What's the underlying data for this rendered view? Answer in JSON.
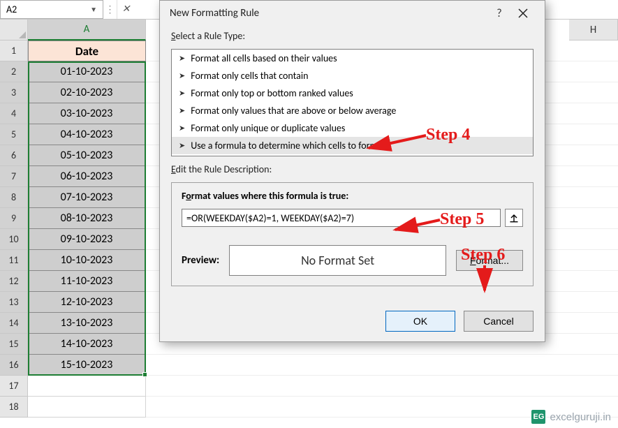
{
  "namebox": {
    "value": "A2"
  },
  "formulabar": {
    "value": ""
  },
  "columns": [
    "A",
    "H"
  ],
  "sheet": {
    "header_label": "Date",
    "row_headers": [
      1,
      2,
      3,
      4,
      5,
      6,
      7,
      8,
      9,
      10,
      11,
      12,
      13,
      14,
      15,
      16,
      17,
      18
    ],
    "colA": [
      "01-10-2023",
      "02-10-2023",
      "03-10-2023",
      "04-10-2023",
      "05-10-2023",
      "06-10-2023",
      "07-10-2023",
      "08-10-2023",
      "09-10-2023",
      "10-10-2023",
      "11-10-2023",
      "12-10-2023",
      "13-10-2023",
      "14-10-2023",
      "15-10-2023"
    ],
    "header_bg": "#fce4d6",
    "sel_bg": "#cecece",
    "selection_border": "#1e7e34"
  },
  "dialog": {
    "title": "New Formatting Rule",
    "select_label": "Select a Rule Type:",
    "rule_types": [
      "Format all cells based on their values",
      "Format only cells that contain",
      "Format only top or bottom ranked values",
      "Format only values that are above or below average",
      "Format only unique or duplicate values",
      "Use a formula to determine which cells to format"
    ],
    "selected_rule_index": 5,
    "edit_label": "Edit the Rule Description:",
    "formula_label": "Format values where this formula is true:",
    "formula_value": "=OR(WEEKDAY($A2)=1, WEEKDAY($A2)=7)",
    "preview_label": "Preview:",
    "preview_text": "No Format Set",
    "format_btn": "Format...",
    "ok_btn": "OK",
    "cancel_btn": "Cancel"
  },
  "annotations": {
    "step4": "Step 4",
    "step5": "Step 5",
    "step6": "Step 6",
    "color": "#e41b1b"
  },
  "watermark": {
    "badge": "EG",
    "text": "excelguruji.in"
  }
}
